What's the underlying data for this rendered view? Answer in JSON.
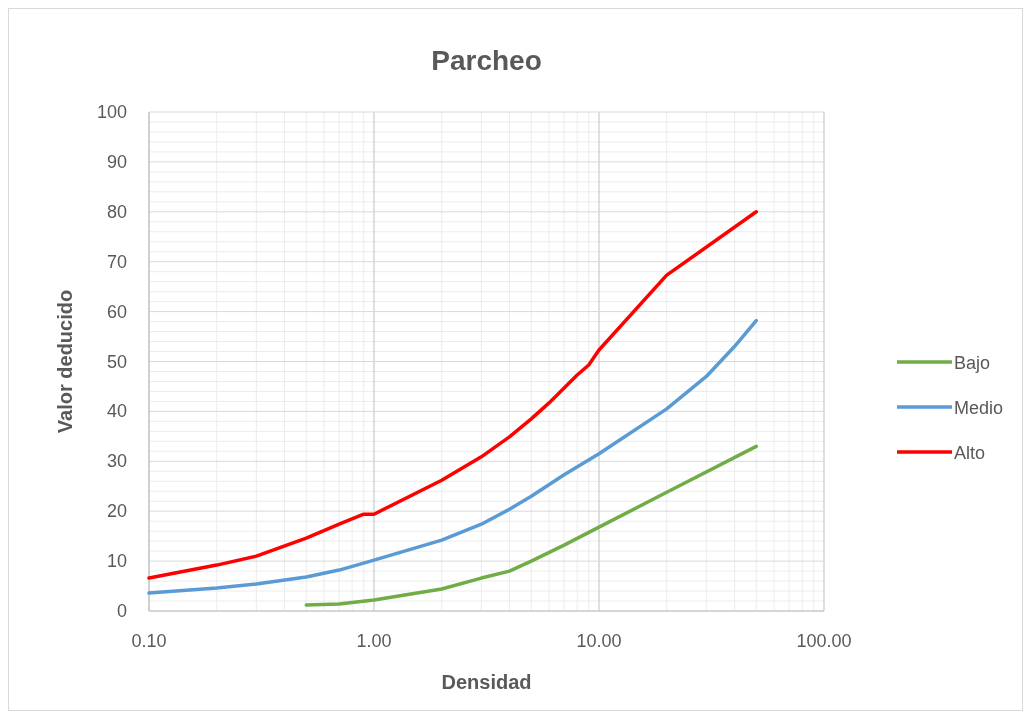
{
  "chart_data": {
    "type": "line",
    "title": "Parcheo",
    "xlabel": "Densidad",
    "ylabel": "Valor deducido",
    "log": "x",
    "grid": true,
    "legend": "right",
    "marker": "none",
    "line_style": "solid",
    "xlim": [
      0.1,
      100
    ],
    "xticks": [
      {
        "value": 0.1,
        "label": "0.10"
      },
      {
        "value": 1,
        "label": "1.00"
      },
      {
        "value": 10,
        "label": "10.00"
      },
      {
        "value": 100,
        "label": "100.00"
      }
    ],
    "ylim": [
      0,
      100
    ],
    "yticks": [
      0,
      10,
      20,
      30,
      40,
      50,
      60,
      70,
      80,
      90,
      100
    ],
    "series": [
      {
        "name": "Bajo",
        "color": "#70ad47",
        "x": [
          0.5,
          0.7,
          1,
          2,
          3,
          4,
          5,
          7,
          10,
          20,
          50
        ],
        "values": [
          1.2,
          1.4,
          2.2,
          4.4,
          6.6,
          8,
          10,
          13.2,
          16.8,
          23.8,
          33
        ]
      },
      {
        "name": "Medio",
        "color": "#5b9bd5",
        "x": [
          0.1,
          0.2,
          0.3,
          0.5,
          0.7,
          0.9,
          1,
          2,
          3,
          4,
          5,
          7,
          10,
          20,
          30,
          40,
          50
        ],
        "values": [
          3.6,
          4.6,
          5.4,
          6.8,
          8.2,
          9.6,
          10.2,
          14.2,
          17.4,
          20.4,
          23,
          27.3,
          31.5,
          40.5,
          47,
          53,
          58.2
        ]
      },
      {
        "name": "Alto",
        "color": "#ff0000",
        "x": [
          0.1,
          0.2,
          0.3,
          0.5,
          0.7,
          0.9,
          1,
          2,
          3,
          4,
          5,
          6,
          7,
          8,
          9,
          10,
          20,
          50
        ],
        "values": [
          6.6,
          9.2,
          11,
          14.6,
          17.4,
          19.4,
          19.4,
          26.2,
          30.9,
          34.9,
          38.5,
          41.7,
          44.7,
          47.3,
          49.3,
          52.3,
          67.3,
          80
        ]
      }
    ]
  }
}
